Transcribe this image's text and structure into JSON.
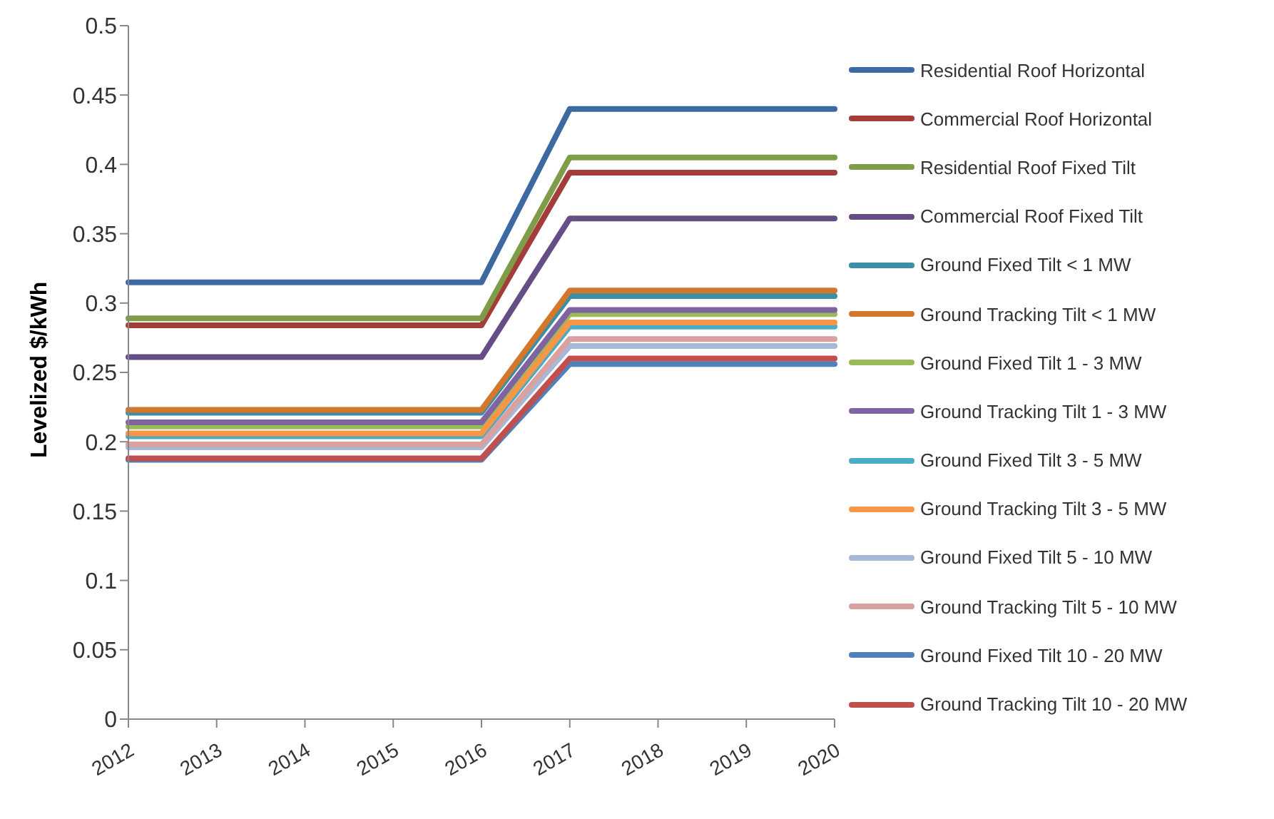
{
  "chart_data": {
    "type": "line",
    "ylabel": "Levelized $/kWh",
    "categories": [
      "2012",
      "2013",
      "2014",
      "2015",
      "2016",
      "2017",
      "2018",
      "2019",
      "2020"
    ],
    "ylim": [
      0,
      0.5
    ],
    "yticks": [
      0,
      0.05,
      0.1,
      0.15,
      0.2,
      0.25,
      0.3,
      0.35,
      0.4,
      0.45,
      0.5
    ],
    "grid": false,
    "legend": "right",
    "marker": "none",
    "line_style": "solid",
    "series": [
      {
        "name": "Residential Roof Horizontal",
        "color": "#3c6aa0",
        "values": [
          0.315,
          0.315,
          0.315,
          0.315,
          0.315,
          0.44,
          0.44,
          0.44,
          0.44
        ]
      },
      {
        "name": "Commercial Roof Horizontal",
        "color": "#a33d3a",
        "values": [
          0.284,
          0.284,
          0.284,
          0.284,
          0.284,
          0.394,
          0.394,
          0.394,
          0.394
        ]
      },
      {
        "name": "Residential Roof Fixed Tilt",
        "color": "#7f9c48",
        "values": [
          0.289,
          0.289,
          0.289,
          0.289,
          0.289,
          0.405,
          0.405,
          0.405,
          0.405
        ]
      },
      {
        "name": "Commercial Roof Fixed Tilt",
        "color": "#654d85",
        "values": [
          0.261,
          0.261,
          0.261,
          0.261,
          0.261,
          0.361,
          0.361,
          0.361,
          0.361
        ]
      },
      {
        "name": "Ground Fixed Tilt < 1 MW",
        "color": "#3b8ea5",
        "values": [
          0.221,
          0.221,
          0.221,
          0.221,
          0.221,
          0.305,
          0.305,
          0.305,
          0.305
        ]
      },
      {
        "name": "Ground Tracking Tilt < 1 MW",
        "color": "#d3772b",
        "values": [
          0.223,
          0.223,
          0.223,
          0.223,
          0.223,
          0.309,
          0.309,
          0.309,
          0.309
        ]
      },
      {
        "name": "Ground Fixed Tilt 1 - 3 MW",
        "color": "#9bbb59",
        "values": [
          0.211,
          0.211,
          0.211,
          0.211,
          0.211,
          0.292,
          0.292,
          0.292,
          0.292
        ]
      },
      {
        "name": "Ground Tracking Tilt 1 - 3 MW",
        "color": "#8064a2",
        "values": [
          0.214,
          0.214,
          0.214,
          0.214,
          0.214,
          0.295,
          0.295,
          0.295,
          0.295
        ]
      },
      {
        "name": "Ground Fixed Tilt 3 - 5 MW",
        "color": "#4bacc6",
        "values": [
          0.204,
          0.204,
          0.204,
          0.204,
          0.204,
          0.283,
          0.283,
          0.283,
          0.283
        ]
      },
      {
        "name": "Ground Tracking Tilt 3 - 5 MW",
        "color": "#f79646",
        "values": [
          0.206,
          0.206,
          0.206,
          0.206,
          0.206,
          0.286,
          0.286,
          0.286,
          0.286
        ]
      },
      {
        "name": "Ground Fixed Tilt 5 - 10 MW",
        "color": "#a5b8d8",
        "values": [
          0.196,
          0.196,
          0.196,
          0.196,
          0.196,
          0.269,
          0.269,
          0.269,
          0.269
        ]
      },
      {
        "name": "Ground Tracking Tilt 5 - 10 MW",
        "color": "#d9a1a0",
        "values": [
          0.198,
          0.198,
          0.198,
          0.198,
          0.198,
          0.274,
          0.274,
          0.274,
          0.274
        ]
      },
      {
        "name": "Ground Fixed Tilt 10 - 20 MW",
        "color": "#4f81bd",
        "values": [
          0.187,
          0.187,
          0.187,
          0.187,
          0.187,
          0.256,
          0.256,
          0.256,
          0.256
        ]
      },
      {
        "name": "Ground Tracking Tilt 10 - 20 MW",
        "color": "#c0504d",
        "values": [
          0.188,
          0.188,
          0.188,
          0.188,
          0.188,
          0.26,
          0.26,
          0.26,
          0.26
        ]
      }
    ]
  }
}
